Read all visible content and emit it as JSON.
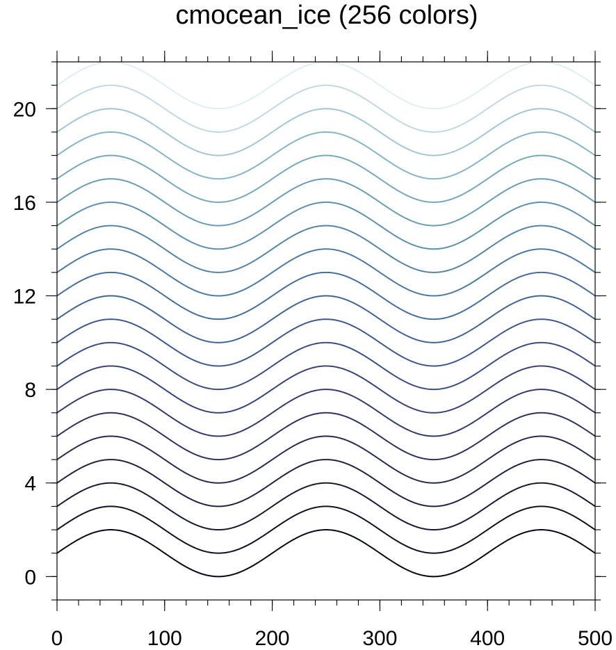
{
  "chart_data": {
    "type": "line",
    "title": "cmocean_ice (256 colors)",
    "xlabel": "",
    "ylabel": "",
    "xlim": [
      0,
      500
    ],
    "ylim": [
      -1,
      22
    ],
    "x_ticks": [
      0,
      100,
      200,
      300,
      400,
      500
    ],
    "x_tick_labels": [
      "0",
      "100",
      "200",
      "300",
      "400",
      "500"
    ],
    "y_ticks": [
      0,
      4,
      8,
      12,
      16,
      20
    ],
    "y_tick_labels": [
      "0",
      "4",
      "8",
      "12",
      "16",
      "20"
    ],
    "x_minor_step": 20,
    "y_minor_step": 1,
    "grid": false,
    "curve": {
      "form": "offset + sin(2*pi*x/200)",
      "period": 200,
      "amplitude": 1,
      "x_start": 0,
      "x_end": 500
    },
    "series": [
      {
        "offset": 1,
        "color": "#040613"
      },
      {
        "offset": 2,
        "color": "#0f1024"
      },
      {
        "offset": 3,
        "color": "#191932"
      },
      {
        "offset": 4,
        "color": "#222240"
      },
      {
        "offset": 5,
        "color": "#2a2a4e"
      },
      {
        "offset": 6,
        "color": "#2f325c"
      },
      {
        "offset": 7,
        "color": "#343a69"
      },
      {
        "offset": 8,
        "color": "#384476"
      },
      {
        "offset": 9,
        "color": "#3b4e82"
      },
      {
        "offset": 10,
        "color": "#3e588c"
      },
      {
        "offset": 11,
        "color": "#426393"
      },
      {
        "offset": 12,
        "color": "#476e9a"
      },
      {
        "offset": 13,
        "color": "#4e79a0"
      },
      {
        "offset": 14,
        "color": "#5684a6"
      },
      {
        "offset": 15,
        "color": "#5f90ad"
      },
      {
        "offset": 16,
        "color": "#6a9cb4"
      },
      {
        "offset": 17,
        "color": "#77a8bc"
      },
      {
        "offset": 18,
        "color": "#88b5c6"
      },
      {
        "offset": 19,
        "color": "#a3c6d3"
      },
      {
        "offset": 20,
        "color": "#c2d9e2"
      },
      {
        "offset": 21,
        "color": "#e1eef3"
      }
    ]
  }
}
